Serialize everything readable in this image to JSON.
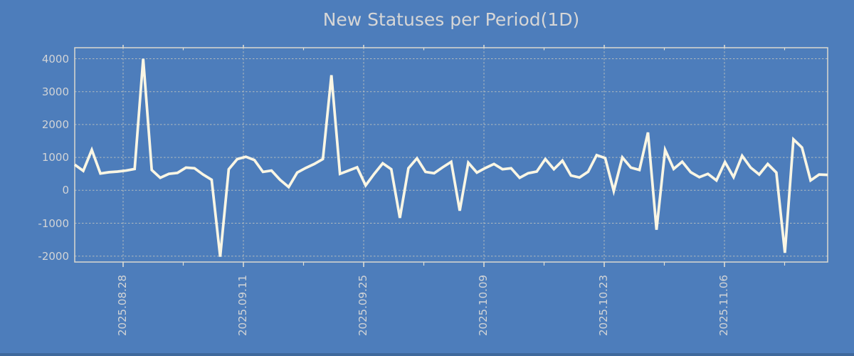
{
  "title": "New Statuses per Period(1D)",
  "colors": {
    "background": "#4d7dbb",
    "bottom_strip": "#3e689c",
    "line": "#faf6e4",
    "grid": "#d3cfbf",
    "axis_border": "#dcdacf",
    "tick": "#e4e2d6",
    "title_text": "#d6d6d6",
    "axis_text": "#d2d4d6"
  },
  "chart_data": {
    "type": "line",
    "title": "New Statuses per Period(1D)",
    "xlabel": "",
    "ylabel": "",
    "legend": "none",
    "grid": "dashed",
    "period": "1D",
    "y_ticks": [
      -2000,
      -1000,
      0,
      1000,
      2000,
      3000,
      4000
    ],
    "ylim": [
      -2200,
      4350
    ],
    "x_tick_labels": [
      "2025.08.28",
      "2025.09.11",
      "2025.09.25",
      "2025.10.09",
      "2025.10.23",
      "2025.11.06"
    ],
    "x_tick_interval_days": 14,
    "x_minor_tick_interval_days": 7,
    "values": [
      780,
      590,
      1230,
      510,
      550,
      570,
      600,
      650,
      4000,
      620,
      380,
      500,
      530,
      690,
      670,
      480,
      320,
      -2020,
      640,
      950,
      1020,
      920,
      560,
      600,
      320,
      100,
      540,
      680,
      800,
      950,
      3500,
      500,
      600,
      700,
      150,
      500,
      820,
      640,
      -840,
      670,
      975,
      560,
      520,
      700,
      865,
      -620,
      840,
      540,
      680,
      800,
      640,
      670,
      380,
      520,
      570,
      950,
      640,
      900,
      450,
      390,
      565,
      1070,
      980,
      -20,
      1000,
      690,
      620,
      1760,
      -1200,
      1230,
      650,
      870,
      550,
      400,
      500,
      300,
      860,
      400,
      1050,
      690,
      480,
      800,
      540,
      -1900,
      1550,
      1300,
      300,
      480,
      470
    ],
    "x_tick_value_indices": [
      6,
      20,
      34,
      48,
      62,
      76
    ]
  }
}
